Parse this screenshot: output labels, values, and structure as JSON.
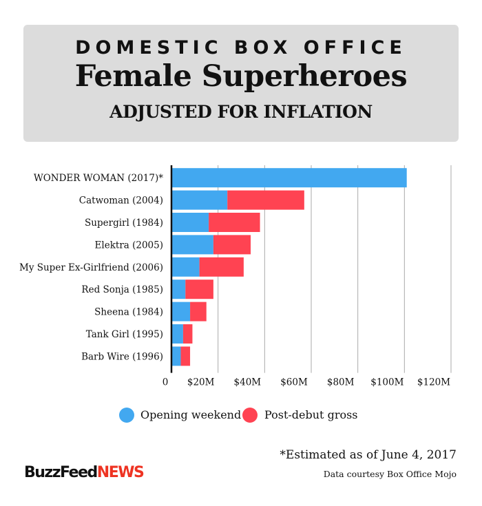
{
  "header": {
    "line1": "DOMESTIC BOX OFFICE",
    "line2": "Female Superheroes",
    "line3": "ADJUSTED FOR INFLATION"
  },
  "chart_data": {
    "type": "bar",
    "orientation": "horizontal",
    "stacked": true,
    "categories": [
      "WONDER WOMAN (2017)*",
      "Catwoman (2004)",
      "Supergirl (1984)",
      "Elektra (2005)",
      "My Super Ex-Girlfriend (2006)",
      "Red Sonja (1985)",
      "Sheena (1984)",
      "Tank Girl (1995)",
      "Barb Wire (1996)"
    ],
    "series": [
      {
        "name": "Opening weekend",
        "color": "#42a8f0",
        "values": [
          101,
          24,
          16,
          18,
          12,
          6,
          8,
          5,
          4
        ]
      },
      {
        "name": "Post-debut gross",
        "color": "#ff4352",
        "values": [
          0,
          33,
          22,
          16,
          19,
          12,
          7,
          4,
          4
        ]
      }
    ],
    "xlim": [
      0,
      120
    ],
    "x_ticks": [
      "0",
      "$20M",
      "$40M",
      "$60M",
      "$80M",
      "$100M",
      "$120M"
    ],
    "grid": true,
    "legend_position": "bottom"
  },
  "footer": {
    "note": "*Estimated as of June 4, 2017",
    "credit": "Data courtesy Box Office Mojo",
    "logo_main": "BuzzFeed",
    "logo_news": "NEWS"
  }
}
